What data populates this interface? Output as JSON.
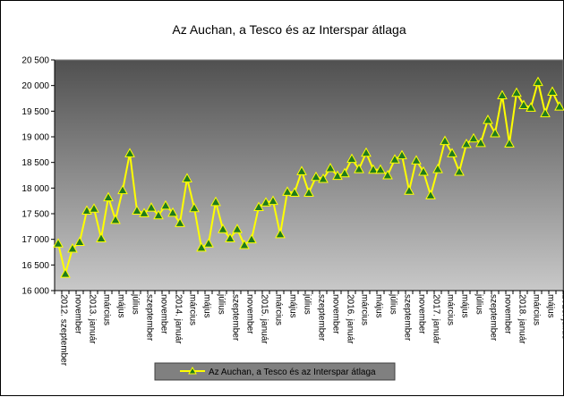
{
  "chart_data": {
    "type": "line",
    "title": "Az Auchan,  a Tesco és az Interspar átlaga",
    "xlabel": "",
    "ylabel": "",
    "ylim": [
      16000,
      20500
    ],
    "ytick_step": 500,
    "y_tick_labels": [
      "16 000",
      "16 500",
      "17 000",
      "17 500",
      "18 000",
      "18 500",
      "19 000",
      "19 500",
      "20 000",
      "20 500"
    ],
    "legend": "bottom",
    "grid": false,
    "colors": {
      "line": "#ffff00",
      "marker": "#1e7a1e",
      "plot_top": "#505050",
      "plot_bottom": "#c8c8c8"
    },
    "categories": [
      "2012. szeptember",
      "",
      "november",
      "",
      "2013. január",
      "",
      "március",
      "",
      "május",
      "",
      "július",
      "",
      "szeptember",
      "",
      "november",
      "",
      "2014. január",
      "",
      "március",
      "",
      "május",
      "",
      "július",
      "",
      "szeptember",
      "",
      "november",
      "",
      "2015. január",
      "",
      "március",
      "",
      "május",
      "",
      "július",
      "",
      "szeptember",
      "",
      "november",
      "",
      "2016. január",
      "",
      "március",
      "",
      "május",
      "",
      "július",
      "",
      "szeptember",
      "",
      "november",
      "",
      "2017. január",
      "",
      "március",
      "",
      "május",
      "",
      "július",
      "",
      "szeptember",
      "",
      "november",
      "",
      "2018. január",
      "",
      "március",
      "",
      "május",
      "",
      "2018. július"
    ],
    "series": [
      {
        "name": "Az Auchan, a Tesco és az Interspar átlaga",
        "values": [
          16920,
          16330,
          16820,
          16950,
          17560,
          17600,
          17020,
          17820,
          17380,
          17960,
          18680,
          17560,
          17510,
          17620,
          17470,
          17660,
          17520,
          17320,
          18190,
          17610,
          16840,
          16920,
          17730,
          17200,
          17020,
          17200,
          16890,
          17000,
          17630,
          17720,
          17750,
          17100,
          17930,
          17910,
          18330,
          17910,
          18220,
          18180,
          18390,
          18240,
          18290,
          18570,
          18370,
          18690,
          18360,
          18360,
          18250,
          18560,
          18640,
          17950,
          18540,
          18320,
          17860,
          18370,
          18920,
          18680,
          18320,
          18860,
          18970,
          18880,
          19330,
          19070,
          19810,
          18870,
          19860,
          19620,
          19570,
          20070,
          19460,
          19880,
          19590
        ]
      }
    ]
  }
}
